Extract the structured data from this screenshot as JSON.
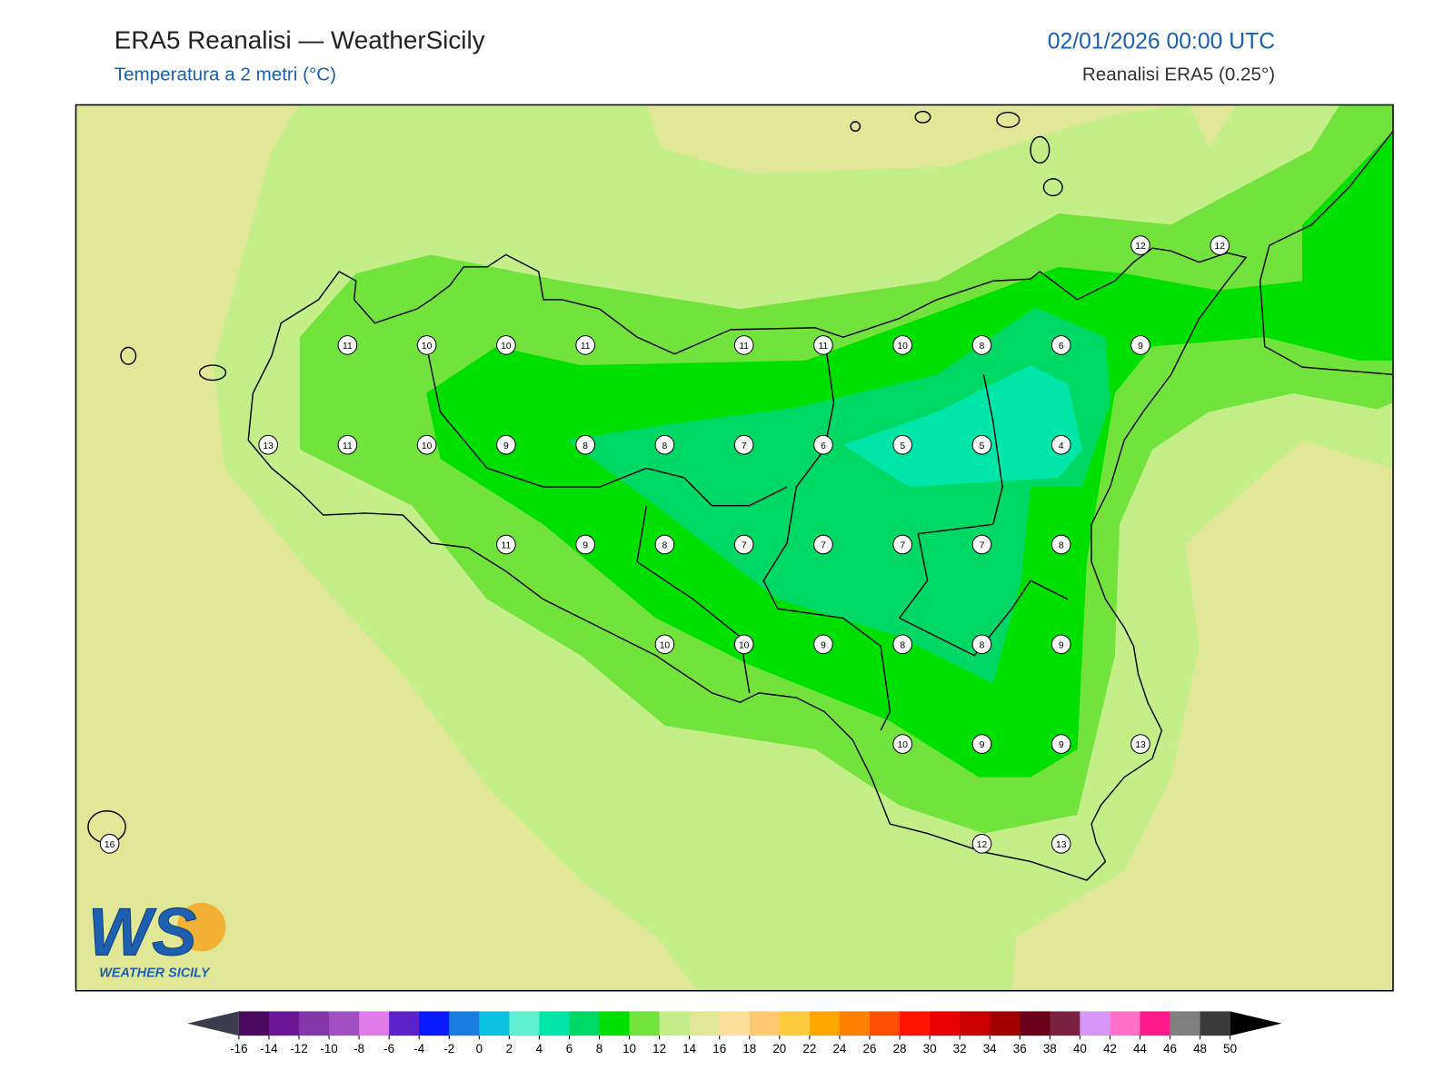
{
  "header": {
    "title": "ERA5 Reanalisi — WeatherSicily",
    "subtitle": "Temperatura a 2 metri (°C)",
    "datetime": "02/01/2026 00:00 UTC",
    "source": "Reanalisi ERA5 (0.25°)"
  },
  "temperature_points": {
    "rows": [
      [
        null,
        null,
        null,
        null,
        null,
        null,
        null,
        null,
        null,
        null,
        null,
        null,
        null,
        12,
        12
      ],
      [
        null,
        null,
        null,
        11,
        10,
        10,
        11,
        null,
        11,
        11,
        10,
        8,
        6,
        9,
        null
      ],
      [
        null,
        null,
        13,
        11,
        10,
        9,
        8,
        8,
        7,
        6,
        5,
        5,
        4,
        null,
        null
      ],
      [
        null,
        null,
        null,
        null,
        null,
        11,
        9,
        8,
        7,
        7,
        7,
        7,
        8,
        null,
        null
      ],
      [
        null,
        null,
        null,
        null,
        null,
        null,
        null,
        10,
        10,
        9,
        8,
        8,
        9,
        null,
        null
      ],
      [
        null,
        null,
        null,
        null,
        null,
        null,
        null,
        null,
        null,
        null,
        10,
        9,
        9,
        13,
        null
      ],
      [
        16,
        null,
        null,
        null,
        null,
        null,
        null,
        null,
        null,
        null,
        null,
        12,
        13,
        null,
        null
      ]
    ]
  },
  "colorbar": {
    "ticks": [
      -16,
      -14,
      -12,
      -10,
      -8,
      -6,
      -4,
      -2,
      0,
      2,
      4,
      6,
      8,
      10,
      12,
      14,
      16,
      18,
      20,
      22,
      24,
      26,
      28,
      30,
      32,
      34,
      36,
      38,
      40,
      42,
      44,
      46,
      48,
      50
    ],
    "colors": [
      "#4b0a5e",
      "#6b1796",
      "#8236a8",
      "#a050c0",
      "#e07be8",
      "#5a22c8",
      "#0a1aff",
      "#1a7ee0",
      "#0cc0e0",
      "#5ef0d0",
      "#00e6a8",
      "#00d866",
      "#00e000",
      "#72e23c",
      "#c4ee88",
      "#e0e898",
      "#ffe09a",
      "#fdc870",
      "#ffcc40",
      "#ffa500",
      "#ff8000",
      "#ff5000",
      "#ff1400",
      "#e60000",
      "#c80000",
      "#a00000",
      "#6a0018",
      "#7a2040",
      "#d898f8",
      "#ff70c8",
      "#ff1a8c",
      "#808080",
      "#3a3a3a"
    ],
    "extend_colors": [
      "#3c3c4c",
      "#000000"
    ]
  },
  "logo": {
    "mark": "WS",
    "name": "WEATHER SICILY"
  }
}
